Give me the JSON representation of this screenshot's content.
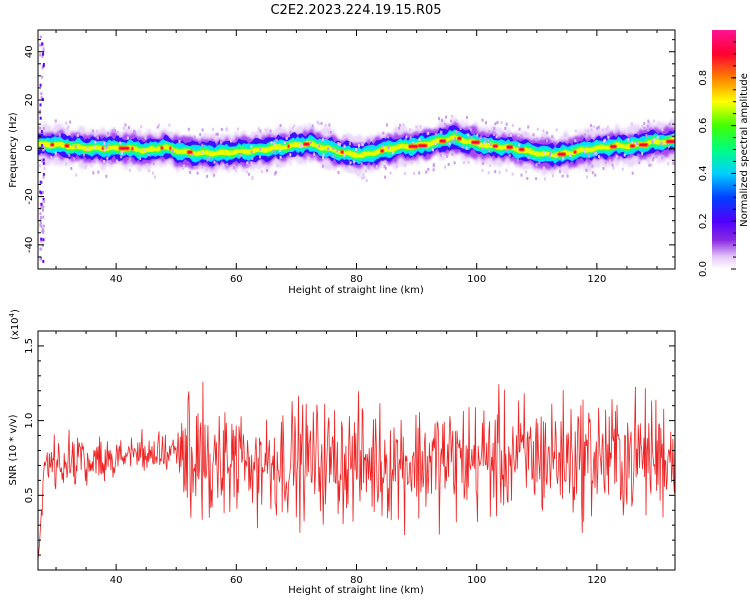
{
  "figure": {
    "title": "C2E2.2023.224.19.15.R05"
  },
  "chart_data": [
    {
      "type": "heatmap",
      "xlabel": "Height of straight line (km)",
      "ylabel": "Frequency (Hz)",
      "xlim": [
        27,
        133
      ],
      "ylim": [
        -50,
        49
      ],
      "x_ticks": [
        40,
        60,
        80,
        100,
        120
      ],
      "y_ticks": [
        -40,
        -20,
        0,
        20,
        40
      ],
      "grid": false,
      "colorbar": {
        "label": "Normalized spectral amplitude",
        "range": [
          0,
          1
        ],
        "ticks": [
          0.0,
          0.2,
          0.4,
          0.6,
          0.8
        ],
        "colormap": [
          "#ffffff",
          "#c07af0",
          "#6a00ff",
          "#1e1eff",
          "#00c8ff",
          "#00ff66",
          "#ffff00",
          "#ff6a00",
          "#ff0040",
          "#ff1493"
        ]
      },
      "ridge": {
        "x": [
          27,
          30,
          33,
          36,
          39,
          42,
          45,
          48,
          51,
          54,
          57,
          60,
          63,
          66,
          69,
          72,
          75,
          78,
          81,
          84,
          87,
          90,
          93,
          96,
          99,
          102,
          105,
          108,
          111,
          114,
          117,
          120,
          123,
          126,
          129,
          133
        ],
        "frequency_hz": [
          1.5,
          1.5,
          0.5,
          0,
          0,
          0,
          -1,
          0.5,
          -1.5,
          -2,
          -2,
          -1.5,
          -1,
          0,
          1,
          2,
          0,
          -2,
          -3,
          -1,
          0.5,
          1,
          2.5,
          4.5,
          2.5,
          1,
          0.5,
          -1,
          -2.5,
          -2.5,
          -1,
          0,
          1,
          1,
          2.5,
          3
        ]
      }
    },
    {
      "type": "line",
      "xlabel": "Height of straight line (km)",
      "ylabel": "SNR (10 * v/v)",
      "y_multiplier": "(x10",
      "y_multiplier_exp": "4",
      "y_multiplier_close": ")",
      "xlim": [
        27,
        133
      ],
      "ylim": [
        0,
        1.6
      ],
      "x_ticks": [
        40,
        60,
        80,
        100,
        120
      ],
      "y_ticks": [
        0.5,
        1.0,
        1.5
      ],
      "y_tick_labels": [
        "0.5",
        "1.0",
        "1.5"
      ],
      "grid": false,
      "series": [
        {
          "color": "#ee2222",
          "profile_x": [
            27,
            28,
            30,
            35,
            40,
            45,
            50,
            51,
            60,
            70,
            80,
            90,
            100,
            110,
            120,
            130,
            133
          ],
          "profile_mean": [
            0.02,
            0.72,
            0.72,
            0.74,
            0.76,
            0.78,
            0.78,
            0.72,
            0.72,
            0.74,
            0.72,
            0.72,
            0.74,
            0.76,
            0.76,
            0.77,
            0.78
          ],
          "profile_spread": [
            0.01,
            0.16,
            0.16,
            0.15,
            0.12,
            0.13,
            0.13,
            0.35,
            0.36,
            0.36,
            0.36,
            0.36,
            0.37,
            0.38,
            0.38,
            0.38,
            0.38
          ]
        }
      ]
    }
  ]
}
